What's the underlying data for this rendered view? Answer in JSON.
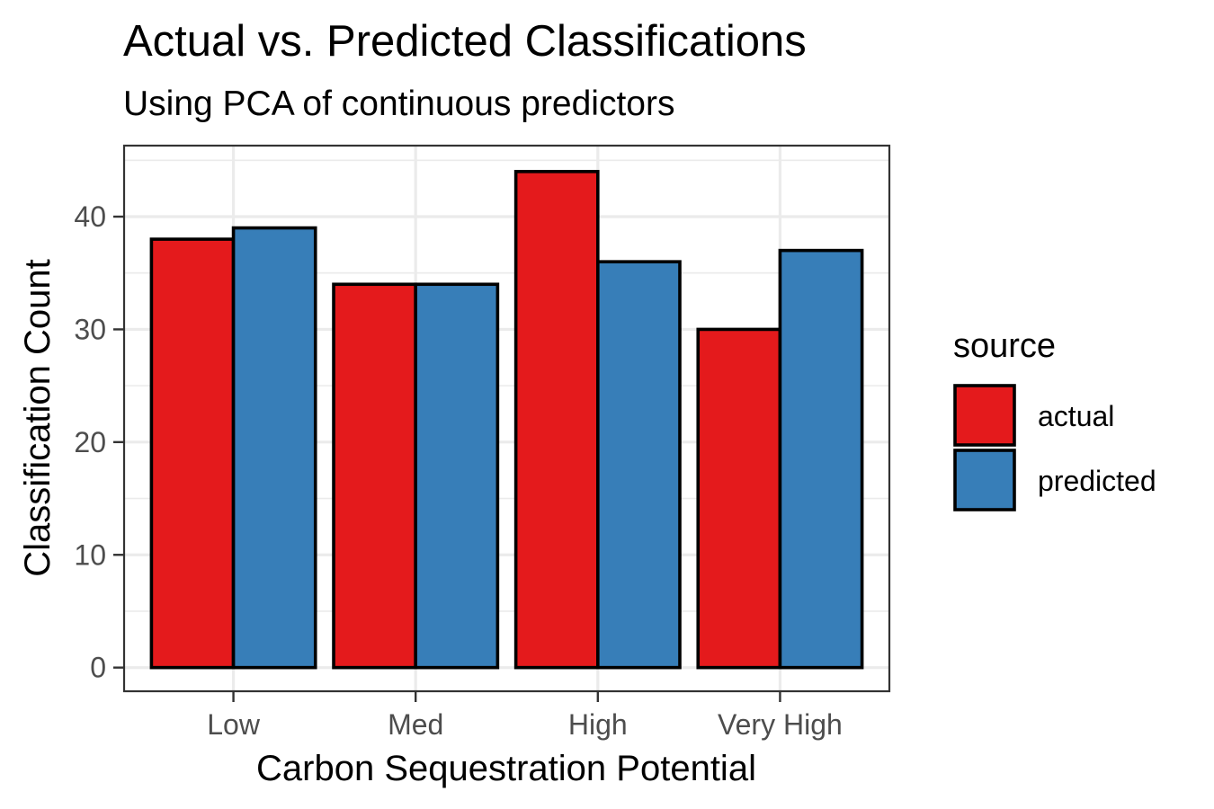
{
  "chart_data": {
    "type": "bar",
    "title": "Actual vs. Predicted Classifications",
    "subtitle": "Using PCA of continuous predictors",
    "xlabel": "Carbon Sequestration Potential",
    "ylabel": "Classification Count",
    "categories": [
      "Low",
      "Med",
      "High",
      "Very High"
    ],
    "series": [
      {
        "name": "actual",
        "values": [
          38,
          34,
          44,
          30
        ],
        "color": "#E41A1C"
      },
      {
        "name": "predicted",
        "values": [
          39,
          34,
          36,
          37
        ],
        "color": "#377EB8"
      }
    ],
    "ylim": [
      0,
      46
    ],
    "yticks": [
      0,
      10,
      20,
      30,
      40
    ],
    "grid": true,
    "legend": {
      "title": "source",
      "position": "right"
    }
  }
}
